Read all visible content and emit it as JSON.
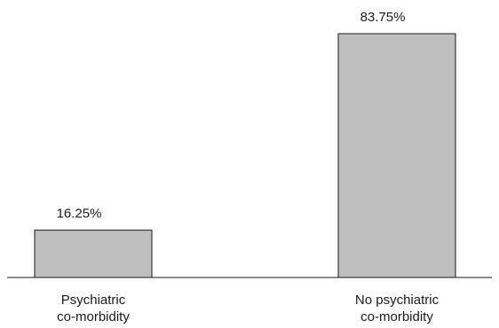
{
  "chart_data": {
    "type": "bar",
    "categories": [
      [
        "Psychiatric",
        "co-morbidity"
      ],
      [
        "No psychiatric",
        "co-morbidity"
      ]
    ],
    "values": [
      16.25,
      83.75
    ],
    "data_labels": [
      "16.25%",
      "83.75%"
    ],
    "unit": "%",
    "ylim": [
      0,
      100
    ],
    "grid": false,
    "legend": "none",
    "title": "",
    "xlabel": "",
    "ylabel": ""
  },
  "colors": {
    "bar_fill": "#bfbfbf",
    "bar_stroke": "#1a1a1a",
    "text": "#1a1a1a"
  }
}
